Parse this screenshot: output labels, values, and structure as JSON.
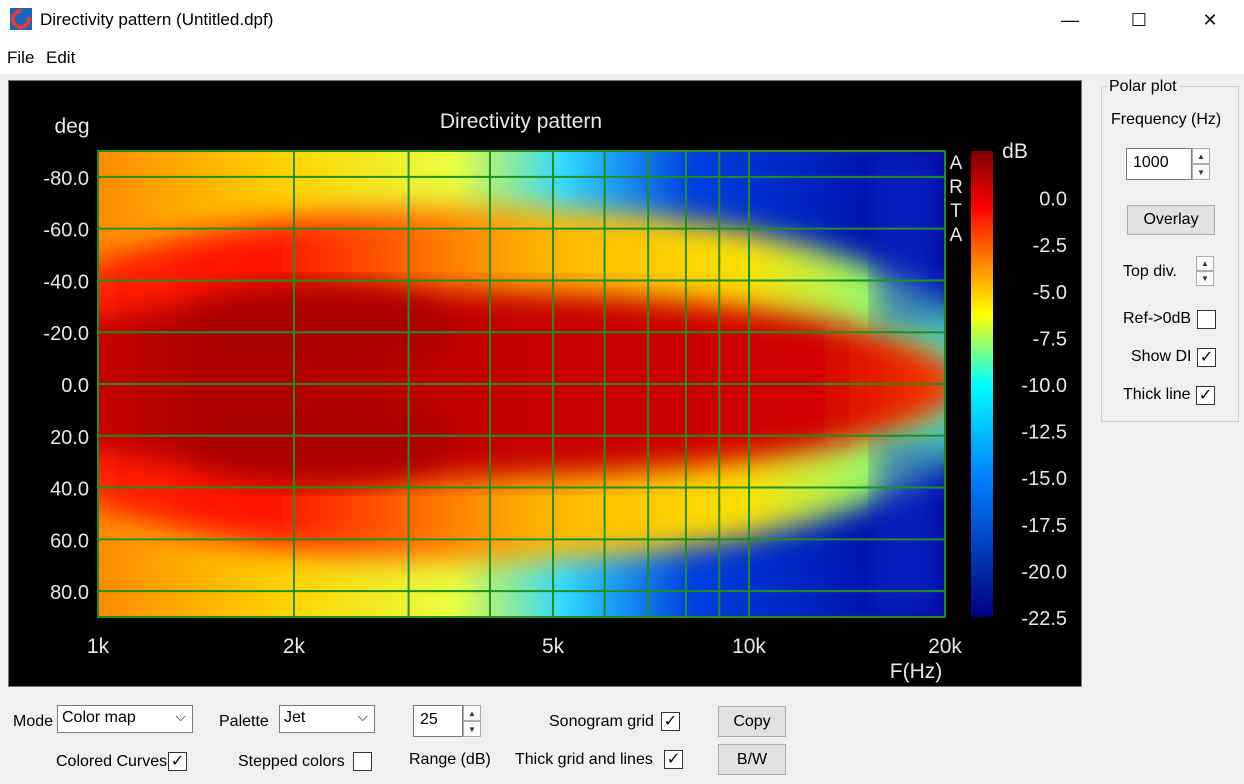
{
  "window": {
    "title": "Directivity pattern (Untitled.dpf)",
    "minimize_glyph": "—",
    "maximize_glyph": "☐",
    "close_glyph": "✕"
  },
  "menu": {
    "file": "File",
    "edit": "Edit"
  },
  "chart_data": {
    "type": "heatmap",
    "title": "Directivity pattern",
    "ylabel": "deg",
    "xlabel": "F(Hz)",
    "xscale": "log",
    "xlim": [
      1000,
      20000
    ],
    "ylim": [
      -90,
      90
    ],
    "x_ticks": [
      "1k",
      "2k",
      "5k",
      "10k",
      "20k"
    ],
    "x_tick_values": [
      1000,
      2000,
      5000,
      10000,
      20000
    ],
    "x_grid_values": [
      1000,
      2000,
      3000,
      4000,
      5000,
      6000,
      7000,
      8000,
      9000,
      10000,
      20000
    ],
    "y_ticks": [
      "-80.0",
      "-60.0",
      "-40.0",
      "-20.0",
      "0.0",
      "20.0",
      "40.0",
      "60.0",
      "80.0"
    ],
    "y_tick_values": [
      -80,
      -60,
      -40,
      -20,
      0,
      20,
      40,
      60,
      80
    ],
    "colorbar_label": "dB",
    "colorbar_ticks": [
      "0.0",
      "-2.5",
      "-5.0",
      "-7.5",
      "-10.0",
      "-12.5",
      "-15.0",
      "-17.5",
      "-20.0",
      "-22.5"
    ],
    "colorbar_range": [
      -22.5,
      2.5
    ],
    "palette": "Jet",
    "watermark": "ARTA",
    "grid": true
  },
  "polar": {
    "group_title": "Polar plot",
    "frequency_label": "Frequency (Hz)",
    "frequency_value": "1000",
    "overlay_button": "Overlay",
    "top_div_label": "Top div.",
    "ref_label": "Ref->0dB",
    "ref_checked": false,
    "show_di_label": "Show DI",
    "show_di_checked": true,
    "thick_line_label": "Thick line",
    "thick_line_checked": true
  },
  "bottom": {
    "mode_label": "Mode",
    "mode_value": "Color map",
    "palette_label": "Palette",
    "palette_value": "Jet",
    "range_value": "25",
    "range_label": "Range (dB)",
    "sonogram_grid_label": "Sonogram grid",
    "sonogram_grid_checked": true,
    "copy_button": "Copy",
    "bw_button": "B/W",
    "colored_curves_label": "Colored Curves",
    "colored_curves_checked": true,
    "stepped_colors_label": "Stepped colors",
    "stepped_colors_checked": false,
    "thick_grid_label": "Thick grid and  lines",
    "thick_grid_checked": true
  },
  "icons": {
    "app": "arta-app-icon",
    "check": "✓",
    "chevron": "⌵",
    "up": "▲",
    "down": "▼"
  },
  "colors": {
    "grid": "#1f8f1f",
    "plot_bg": "#000000"
  }
}
